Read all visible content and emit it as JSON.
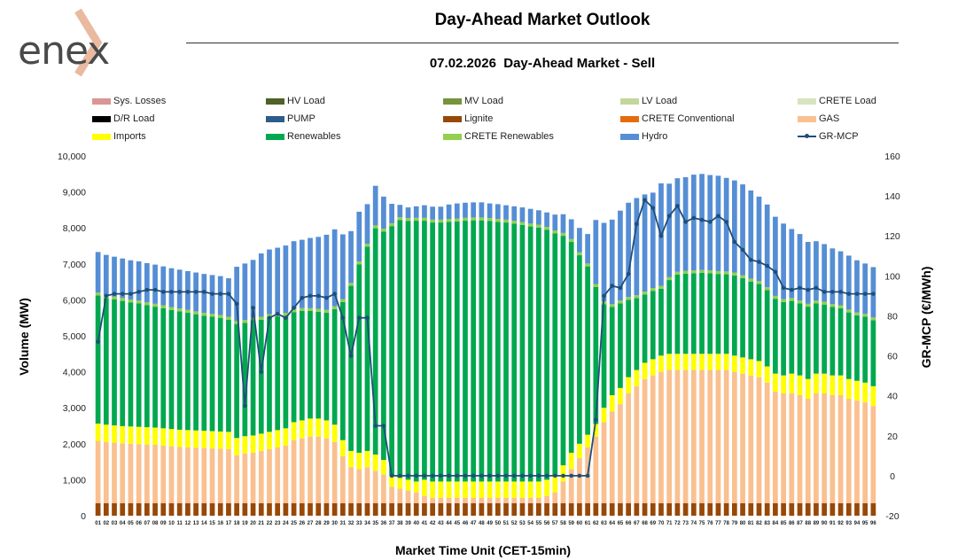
{
  "logo": {
    "text": "enex"
  },
  "header": {
    "title": "Day-Ahead Market Outlook",
    "subtitle": "07.02.2026  Day-Ahead Market - Sell"
  },
  "legend": [
    {
      "name": "Sys. Losses",
      "color": "#d99694",
      "kind": "bar"
    },
    {
      "name": "HV Load",
      "color": "#4f6228",
      "kind": "bar"
    },
    {
      "name": "MV Load",
      "color": "#77933c",
      "kind": "bar"
    },
    {
      "name": "LV Load",
      "color": "#c3d69b",
      "kind": "bar"
    },
    {
      "name": "CRETE Load",
      "color": "#d7e4bd",
      "kind": "bar"
    },
    {
      "name": "D/R Load",
      "color": "#000000",
      "kind": "bar"
    },
    {
      "name": "PUMP",
      "color": "#2e5c8a",
      "kind": "bar"
    },
    {
      "name": "Lignite",
      "color": "#984807",
      "kind": "bar"
    },
    {
      "name": "CRETE Conventional",
      "color": "#e46c0a",
      "kind": "bar"
    },
    {
      "name": "GAS",
      "color": "#fac090",
      "kind": "bar"
    },
    {
      "name": "Imports",
      "color": "#ffff00",
      "kind": "bar"
    },
    {
      "name": "Renewables",
      "color": "#00a84f",
      "kind": "bar"
    },
    {
      "name": "CRETE Renewables",
      "color": "#92d050",
      "kind": "bar"
    },
    {
      "name": "Hydro",
      "color": "#558ed5",
      "kind": "bar"
    },
    {
      "name": "GR-MCP",
      "color": "#1f4e79",
      "kind": "line"
    }
  ],
  "chart_data": {
    "type": "bar",
    "stacked": true,
    "xlabel": "Market Time Unit (CET-15min)",
    "ylabel": "Volume (MW)",
    "y2label": "GR-MCP (€/MWh)",
    "ylim": [
      0,
      10000
    ],
    "y2lim": [
      -20,
      160
    ],
    "yticks": [
      "0",
      "1,000",
      "2,000",
      "3,000",
      "4,000",
      "5,000",
      "6,000",
      "7,000",
      "8,000",
      "9,000",
      "10,000"
    ],
    "y2ticks": [
      "-20",
      "0",
      "20",
      "40",
      "60",
      "80",
      "100",
      "120",
      "140",
      "160"
    ],
    "categories": [
      "01",
      "02",
      "03",
      "04",
      "05",
      "06",
      "07",
      "08",
      "09",
      "10",
      "11",
      "12",
      "13",
      "14",
      "15",
      "16",
      "17",
      "18",
      "19",
      "20",
      "21",
      "22",
      "23",
      "24",
      "25",
      "26",
      "27",
      "28",
      "29",
      "30",
      "31",
      "32",
      "33",
      "34",
      "35",
      "36",
      "37",
      "38",
      "39",
      "40",
      "41",
      "42",
      "43",
      "44",
      "45",
      "46",
      "47",
      "48",
      "49",
      "50",
      "51",
      "52",
      "53",
      "54",
      "55",
      "56",
      "57",
      "58",
      "59",
      "60",
      "61",
      "62",
      "63",
      "64",
      "65",
      "66",
      "67",
      "68",
      "69",
      "70",
      "71",
      "72",
      "73",
      "74",
      "75",
      "76",
      "77",
      "78",
      "79",
      "80",
      "81",
      "82",
      "83",
      "84",
      "85",
      "86",
      "87",
      "88",
      "89",
      "90",
      "91",
      "92",
      "93",
      "94",
      "95",
      "96"
    ],
    "series": [
      {
        "name": "Lignite",
        "values": [
          350,
          350,
          350,
          350,
          350,
          350,
          350,
          350,
          350,
          350,
          350,
          350,
          350,
          350,
          350,
          350,
          350,
          350,
          350,
          350,
          350,
          350,
          350,
          350,
          350,
          350,
          350,
          350,
          350,
          350,
          350,
          350,
          350,
          350,
          350,
          350,
          350,
          350,
          350,
          350,
          350,
          350,
          350,
          350,
          350,
          350,
          350,
          350,
          350,
          350,
          350,
          350,
          350,
          350,
          350,
          350,
          350,
          350,
          350,
          350,
          350,
          350,
          350,
          350,
          350,
          350,
          350,
          350,
          350,
          350,
          350,
          350,
          350,
          350,
          350,
          350,
          350,
          350,
          350,
          350,
          350,
          350,
          350,
          350,
          350,
          350,
          350,
          350,
          350,
          350,
          350,
          350,
          350,
          350,
          350,
          350
        ]
      },
      {
        "name": "GAS",
        "values": [
          1730,
          1700,
          1680,
          1660,
          1650,
          1640,
          1630,
          1620,
          1600,
          1580,
          1560,
          1550,
          1540,
          1530,
          1520,
          1510,
          1500,
          1330,
          1380,
          1400,
          1450,
          1500,
          1550,
          1600,
          1750,
          1800,
          1850,
          1850,
          1800,
          1700,
          1300,
          1000,
          950,
          1000,
          900,
          800,
          450,
          400,
          350,
          300,
          200,
          150,
          150,
          150,
          150,
          150,
          150,
          150,
          150,
          150,
          150,
          150,
          150,
          150,
          150,
          200,
          300,
          600,
          950,
          1250,
          1550,
          1850,
          2250,
          2550,
          2750,
          3050,
          3250,
          3450,
          3550,
          3650,
          3700,
          3700,
          3700,
          3700,
          3700,
          3700,
          3700,
          3700,
          3650,
          3600,
          3550,
          3500,
          3350,
          3100,
          3050,
          3050,
          3000,
          2900,
          3050,
          3050,
          3000,
          3000,
          2900,
          2850,
          2800,
          2700
        ]
      },
      {
        "name": "Imports",
        "values": [
          480,
          480,
          480,
          480,
          480,
          480,
          480,
          480,
          480,
          480,
          480,
          480,
          480,
          480,
          480,
          480,
          480,
          480,
          480,
          480,
          480,
          480,
          480,
          480,
          500,
          500,
          500,
          500,
          500,
          480,
          450,
          450,
          450,
          450,
          450,
          400,
          300,
          300,
          300,
          300,
          450,
          450,
          450,
          450,
          450,
          450,
          450,
          450,
          450,
          450,
          450,
          450,
          450,
          450,
          450,
          450,
          450,
          450,
          450,
          400,
          350,
          350,
          400,
          450,
          450,
          450,
          450,
          450,
          450,
          450,
          450,
          450,
          450,
          450,
          450,
          450,
          450,
          450,
          450,
          450,
          450,
          450,
          450,
          500,
          500,
          550,
          550,
          550,
          550,
          550,
          550,
          550,
          550,
          550,
          550,
          550
        ]
      },
      {
        "name": "Renewables",
        "values": [
          3560,
          3520,
          3500,
          3480,
          3450,
          3430,
          3390,
          3360,
          3340,
          3310,
          3290,
          3260,
          3230,
          3200,
          3180,
          3160,
          3120,
          3170,
          3150,
          3200,
          3170,
          3190,
          3160,
          3130,
          3060,
          3040,
          2990,
          2970,
          2990,
          3210,
          3840,
          4590,
          5240,
          5680,
          6290,
          6350,
          6950,
          7170,
          7190,
          7250,
          7200,
          7200,
          7200,
          7220,
          7230,
          7250,
          7260,
          7260,
          7240,
          7220,
          7200,
          7170,
          7130,
          7090,
          7060,
          6950,
          6750,
          6380,
          5860,
          5240,
          4680,
          3810,
          2880,
          2450,
          2350,
          2150,
          2000,
          1900,
          1900,
          1860,
          2050,
          2200,
          2230,
          2240,
          2250,
          2240,
          2220,
          2210,
          2230,
          2200,
          2160,
          2140,
          2120,
          2080,
          2040,
          2020,
          2000,
          2010,
          1950,
          1920,
          1900,
          1870,
          1850,
          1820,
          1830,
          1830
        ]
      },
      {
        "name": "CRETE Renewables",
        "values": [
          80,
          80,
          80,
          80,
          80,
          80,
          80,
          80,
          80,
          80,
          80,
          80,
          80,
          80,
          80,
          80,
          80,
          80,
          80,
          80,
          80,
          80,
          80,
          80,
          80,
          80,
          80,
          80,
          80,
          80,
          80,
          80,
          80,
          80,
          80,
          80,
          80,
          80,
          80,
          80,
          80,
          80,
          80,
          80,
          80,
          80,
          80,
          80,
          80,
          80,
          80,
          80,
          80,
          80,
          80,
          80,
          80,
          80,
          80,
          80,
          80,
          80,
          80,
          80,
          80,
          80,
          80,
          80,
          80,
          80,
          80,
          80,
          80,
          80,
          80,
          80,
          80,
          80,
          80,
          80,
          80,
          80,
          80,
          80,
          80,
          80,
          80,
          80,
          80,
          80,
          80,
          80,
          80,
          80,
          80,
          80
        ]
      },
      {
        "name": "Hydro",
        "values": [
          1130,
          1120,
          1110,
          1100,
          1090,
          1090,
          1090,
          1090,
          1080,
          1080,
          1080,
          1080,
          1080,
          1080,
          1080,
          1080,
          1070,
          1510,
          1570,
          1600,
          1760,
          1800,
          1830,
          1870,
          1890,
          1900,
          1950,
          2000,
          2090,
          2140,
          1800,
          1440,
          1380,
          1100,
          1100,
          890,
          540,
          340,
          300,
          320,
          350,
          360,
          360,
          400,
          420,
          420,
          420,
          420,
          410,
          410,
          400,
          400,
          410,
          410,
          400,
          400,
          440,
          520,
          550,
          680,
          820,
          1780,
          2180,
          2350,
          2500,
          2620,
          2700,
          2700,
          2650,
          2850,
          2600,
          2600,
          2600,
          2660,
          2670,
          2650,
          2650,
          2600,
          2560,
          2530,
          2450,
          2350,
          2300,
          2200,
          2100,
          1920,
          1850,
          1720,
          1650,
          1600,
          1550,
          1500,
          1500,
          1450,
          1400,
          1400
        ]
      }
    ],
    "line": {
      "name": "GR-MCP",
      "axis": "right",
      "values": [
        67,
        90,
        91,
        91,
        91,
        92,
        93,
        93,
        92,
        92,
        92,
        92,
        92,
        92,
        91,
        91,
        91,
        86,
        35,
        84,
        52,
        79,
        81,
        79,
        84,
        89,
        90,
        90,
        89,
        91,
        79,
        60,
        79,
        79,
        25,
        25,
        0,
        0,
        0,
        0,
        0,
        0,
        0,
        0,
        0,
        0,
        0,
        0,
        0,
        0,
        0,
        0,
        0,
        0,
        0,
        0,
        0,
        0,
        0,
        0,
        0,
        28,
        90,
        95,
        94,
        101,
        126,
        138,
        134,
        120,
        130,
        135,
        127,
        129,
        128,
        127,
        130,
        127,
        117,
        113,
        108,
        107,
        105,
        102,
        94,
        93,
        94,
        93,
        94,
        92,
        92,
        92,
        91,
        91,
        91,
        91
      ]
    }
  }
}
